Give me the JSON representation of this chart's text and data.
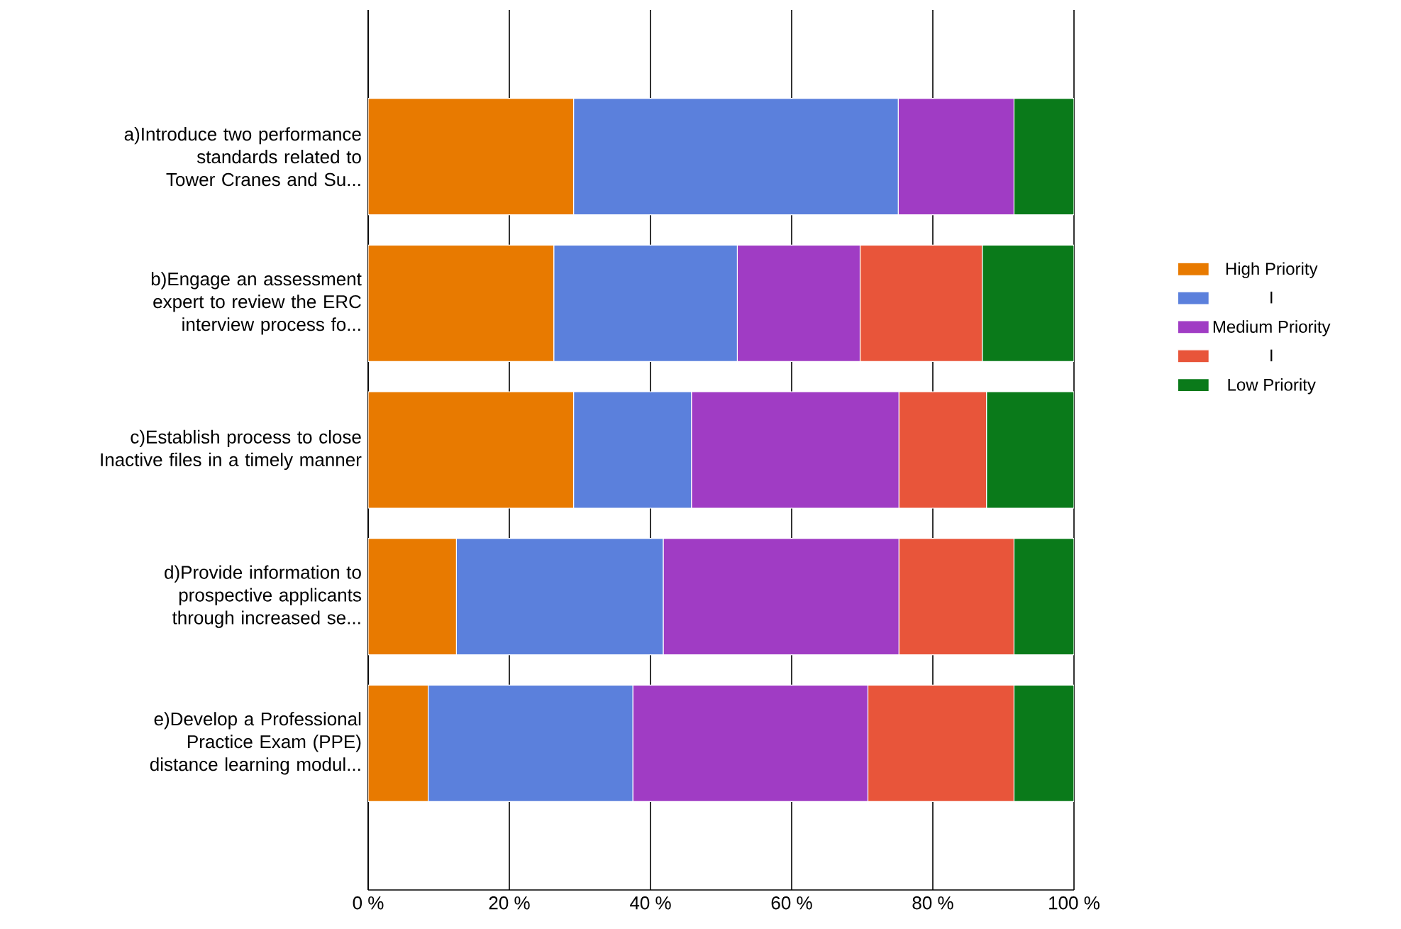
{
  "chart_data": {
    "type": "bar",
    "orientation": "horizontal",
    "stacked": true,
    "categories": [
      "a)Introduce two performance standards related to Tower Cranes and Su...",
      "b)Engage an assessment expert to review the ERC interview process fo...",
      "c)Establish process to close Inactive files in a timely manner",
      "d)Provide information to prospective applicants through increased se...",
      "e)Develop a Professional Practice Exam (PPE) distance learning modul..."
    ],
    "series": [
      {
        "name": "High Priority",
        "color": "#e87a00",
        "values": [
          29.1,
          26.3,
          29.1,
          12.5,
          8.5
        ]
      },
      {
        "name": "I",
        "color": "#5b80dc",
        "values": [
          46.0,
          26.0,
          16.7,
          29.3,
          29.0
        ]
      },
      {
        "name": "Medium Priority",
        "color": "#a03cc4",
        "values": [
          16.4,
          17.4,
          29.4,
          33.4,
          33.3
        ]
      },
      {
        "name": "I",
        "color": "#e8553a",
        "values": [
          0,
          17.3,
          12.4,
          16.3,
          20.7
        ]
      },
      {
        "name": "Low Priority",
        "color": "#0a7a1a",
        "values": [
          8.5,
          13.0,
          12.4,
          8.5,
          8.5
        ]
      }
    ],
    "xlim": [
      0,
      100
    ],
    "xticks": [
      {
        "value": 0,
        "label": "0 %"
      },
      {
        "value": 20,
        "label": "20 %"
      },
      {
        "value": 40,
        "label": "40 %"
      },
      {
        "value": 60,
        "label": "60 %"
      },
      {
        "value": 80,
        "label": "80 %"
      },
      {
        "value": 100,
        "label": "100 %"
      }
    ],
    "grid": "x",
    "legend": "right"
  }
}
